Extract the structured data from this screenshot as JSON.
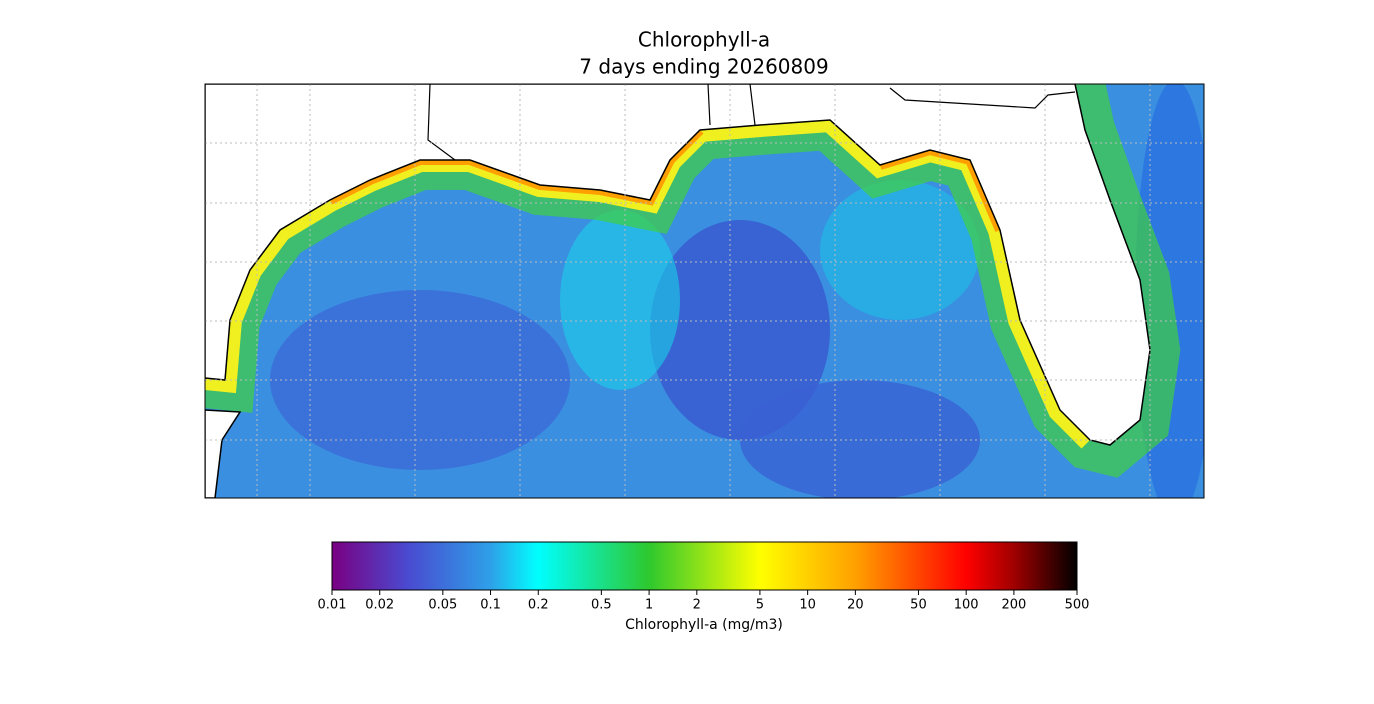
{
  "title": "Chlorophyll-a",
  "subtitle": "7 days ending 20260809",
  "colorbar": {
    "label": "Chlorophyll-a (mg/m3)",
    "log_scale": true,
    "lim": [
      0.01,
      500
    ],
    "ticks": [
      0.01,
      0.02,
      0.05,
      0.1,
      0.2,
      0.5,
      1,
      2,
      5,
      10,
      20,
      50,
      100,
      200,
      500
    ],
    "colormap": [
      {
        "value": 0.01,
        "color": "#7a0082"
      },
      {
        "value": 0.03,
        "color": "#4a4ad0"
      },
      {
        "value": 0.1,
        "color": "#2ea0e8"
      },
      {
        "value": 0.2,
        "color": "#00ffff"
      },
      {
        "value": 1,
        "color": "#2ec82e"
      },
      {
        "value": 5,
        "color": "#ffff00"
      },
      {
        "value": 20,
        "color": "#ffa000"
      },
      {
        "value": 100,
        "color": "#ff0000"
      },
      {
        "value": 200,
        "color": "#a00000"
      },
      {
        "value": 500,
        "color": "#000000"
      }
    ]
  }
}
